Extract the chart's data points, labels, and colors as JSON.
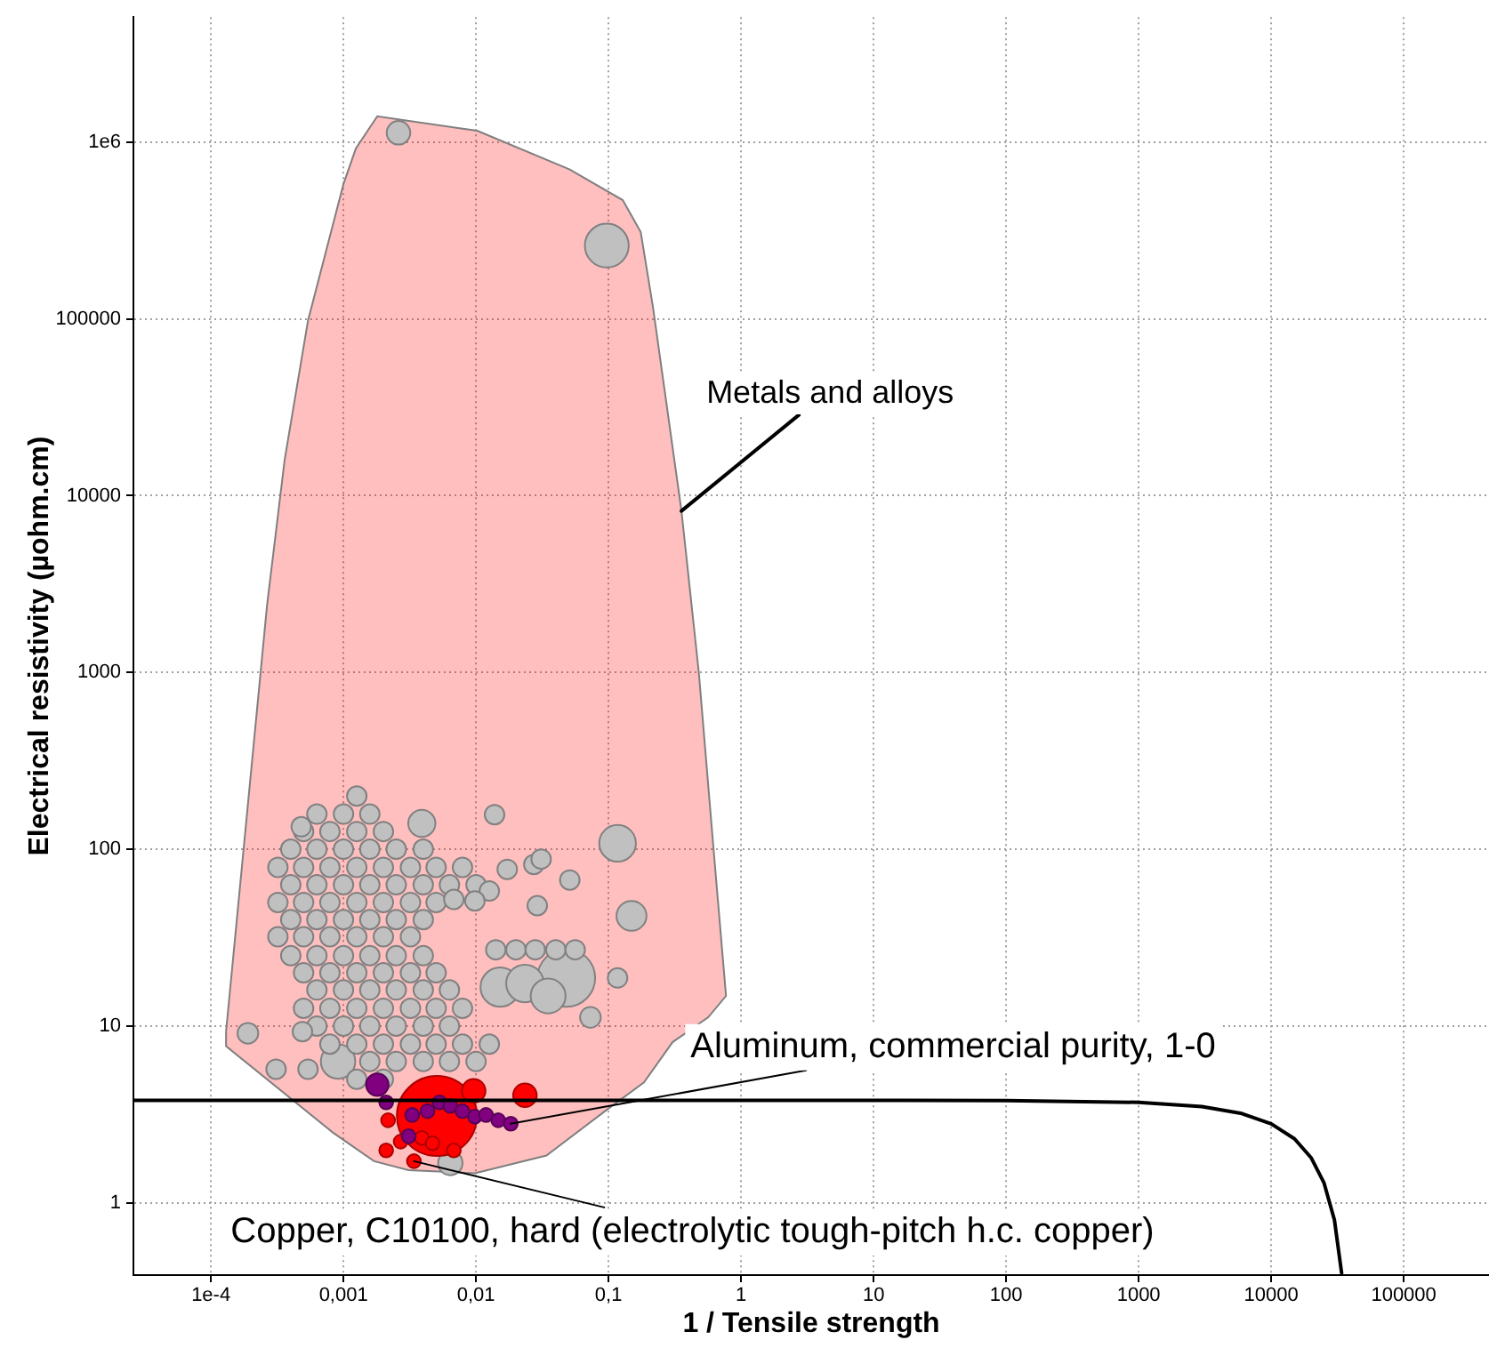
{
  "chart_data": {
    "type": "scatter",
    "xlabel": "1 / Tensile strength",
    "ylabel": "Electrical resistivity (µohm.cm)",
    "log": "xy",
    "grid": true,
    "legend": false,
    "xlim": [
      2.6e-05,
      440000
    ],
    "ylim": [
      0.39,
      5100000
    ],
    "xticks": [
      {
        "value": 0.0001,
        "label": "1e-4"
      },
      {
        "value": 0.001,
        "label": "0,001"
      },
      {
        "value": 0.01,
        "label": "0,01"
      },
      {
        "value": 0.1,
        "label": "0,1"
      },
      1,
      10,
      100,
      1000,
      10000,
      100000
    ],
    "yticks": [
      1,
      10,
      100,
      1000,
      10000,
      100000,
      {
        "value": 1000000,
        "label": "1e6"
      }
    ],
    "series": [
      {
        "type": "area",
        "color": "#ffbfbf",
        "x": [
          0.00013,
          0.000265,
          0.00036,
          0.00054,
          0.001,
          0.00124,
          0.0018,
          0.0102,
          0.051,
          0.128,
          0.175,
          0.217,
          0.355,
          0.48,
          0.62,
          0.77,
          0.565,
          0.304,
          0.185,
          0.094,
          0.034,
          0.0098,
          0.0031,
          0.0017,
          0.00083,
          0.00013,
          0.00013
        ],
        "values": [
          9.3,
          2400,
          16000,
          98000,
          580000,
          920000,
          1400000,
          1160000,
          700000,
          470000,
          310000,
          115000,
          8200,
          1000,
          100,
          14.8,
          11.2,
          8.1,
          4.8,
          3.3,
          1.85,
          1.47,
          1.53,
          1.72,
          2.5,
          7.7,
          9.3
        ]
      },
      {
        "type": "bubble",
        "color": "#c0c0c0",
        "x": [
          0.0039,
          0.117,
          0.149,
          0.073,
          0.00019,
          0.0026,
          0.097,
          0.00091,
          0.0064,
          0.048,
          0.0152,
          0.0234,
          0.035
        ],
        "values": [
          140,
          108,
          42,
          11.2,
          9.1,
          1130000,
          260000,
          6.3,
          1.68,
          18.7,
          16.6,
          17.4,
          14.8
        ],
        "sizes": [
          0.115,
          0.21,
          0.14,
          0.067,
          0.067,
          0.087,
          0.3,
          0.185,
          0.093,
          0.52,
          0.24,
          0.22,
          0.19
        ]
      },
      {
        "type": "scatter",
        "color": "#c0c0c0",
        "marker": "circle",
        "x": [
          0.00126,
          0.00063,
          0.001,
          0.00158,
          0.0005,
          0.00079,
          0.00126,
          0.002,
          0.0004,
          0.00063,
          0.001,
          0.00158,
          0.0025,
          0.004,
          0.00032,
          0.0005,
          0.00079,
          0.00126,
          0.002,
          0.0032,
          0.005,
          0.0079,
          0.0004,
          0.00063,
          0.001,
          0.00158,
          0.0025,
          0.004,
          0.0063,
          0.01,
          0.00032,
          0.0005,
          0.00079,
          0.00126,
          0.002,
          0.0032,
          0.005,
          0.0004,
          0.00063,
          0.001,
          0.00158,
          0.0025,
          0.004,
          0.00032,
          0.0005,
          0.00079,
          0.00126,
          0.002,
          0.0032,
          0.0004,
          0.00063,
          0.001,
          0.00158,
          0.0025,
          0.004,
          0.0005,
          0.00079,
          0.00126,
          0.002,
          0.0032,
          0.005,
          0.00063,
          0.001,
          0.00158,
          0.0025,
          0.004,
          0.0063,
          0.0005,
          0.00079,
          0.00126,
          0.002,
          0.0032,
          0.005,
          0.0079,
          0.00063,
          0.001,
          0.00158,
          0.0025,
          0.004,
          0.0063,
          0.00079,
          0.00126,
          0.002,
          0.0032,
          0.005,
          0.0079,
          0.0126,
          0.00158,
          0.0025,
          0.004,
          0.0063,
          0.01,
          0.00126,
          0.002,
          0.0141,
          0.02,
          0.028,
          0.04,
          0.056,
          0.0138,
          0.0172,
          0.0273,
          0.031,
          0.051,
          0.029,
          0.0126,
          0.117,
          0.00048,
          0.00049,
          0.00031,
          0.00054,
          0.0068,
          0.0098
        ],
        "values": [
          200,
          158,
          158,
          158,
          126,
          126,
          126,
          126,
          100,
          100,
          100,
          100,
          100,
          100,
          79,
          79,
          79,
          79,
          79,
          79,
          79,
          79,
          63,
          63,
          63,
          63,
          63,
          63,
          63,
          63,
          50,
          50,
          50,
          50,
          50,
          50,
          50,
          40,
          40,
          40,
          40,
          40,
          40,
          32,
          32,
          32,
          32,
          32,
          32,
          25,
          25,
          25,
          25,
          25,
          25,
          20,
          20,
          20,
          20,
          20,
          20,
          16,
          16,
          16,
          16,
          16,
          16,
          12.6,
          12.6,
          12.6,
          12.6,
          12.6,
          12.6,
          12.6,
          10,
          10,
          10,
          10,
          10,
          10,
          7.9,
          7.9,
          7.9,
          7.9,
          7.9,
          7.9,
          7.9,
          6.3,
          6.3,
          6.3,
          6.3,
          6.3,
          5,
          5,
          27,
          27,
          27,
          27,
          27,
          157,
          77,
          82,
          88,
          67,
          48,
          58,
          18.7,
          134,
          9.3,
          5.7,
          5.7,
          52,
          51
        ]
      },
      {
        "type": "bubble",
        "color": "#ff0000",
        "x": [
          0.00507,
          0.0096,
          0.0234,
          0.00217,
          0.0021,
          0.0034,
          0.0039,
          0.0047,
          0.0068,
          0.0027
        ],
        "values": [
          3.1,
          4.3,
          4.06,
          2.93,
          1.98,
          1.72,
          2.33,
          2.17,
          1.98,
          2.22
        ],
        "sizes": [
          1,
          0.087,
          0.087,
          0.03,
          0.03,
          0.03,
          0.03,
          0.03,
          0.03,
          0.03
        ]
      },
      {
        "type": "bubble",
        "color": "#800080",
        "x": [
          0.0018,
          0.0021,
          0.0033,
          0.0043,
          0.0053,
          0.0064,
          0.0079,
          0.0098,
          0.0119,
          0.0147,
          0.0183,
          0.0031
        ],
        "values": [
          4.66,
          3.7,
          3.14,
          3.3,
          3.7,
          3.53,
          3.3,
          3.07,
          3.14,
          2.93,
          2.8,
          2.38
        ],
        "sizes": [
          0.079,
          0.03,
          0.03,
          0.03,
          0.03,
          0.03,
          0.03,
          0.03,
          0.03,
          0.03,
          0.03,
          0.03
        ]
      },
      {
        "type": "line",
        "color": "#000000",
        "line_style": "solid",
        "x": [
          2.6e-05,
          1,
          100,
          1000,
          3000,
          6000,
          10000,
          15000,
          20000,
          25000,
          30000,
          34000
        ],
        "values": [
          3.8,
          3.8,
          3.79,
          3.7,
          3.5,
          3.2,
          2.8,
          2.3,
          1.8,
          1.3,
          0.8,
          0.4
        ]
      }
    ],
    "annotations": [
      {
        "text": "Metals and alloys",
        "x": 0.355,
        "y": 8200
      },
      {
        "text": "Aluminum, commercial purity, 1-0",
        "x": 0.0183,
        "y": 2.8
      },
      {
        "text": "Copper, C10100, hard (electrolytic tough-pitch h.c. copper)",
        "x": 0.0034,
        "y": 1.72
      }
    ]
  }
}
